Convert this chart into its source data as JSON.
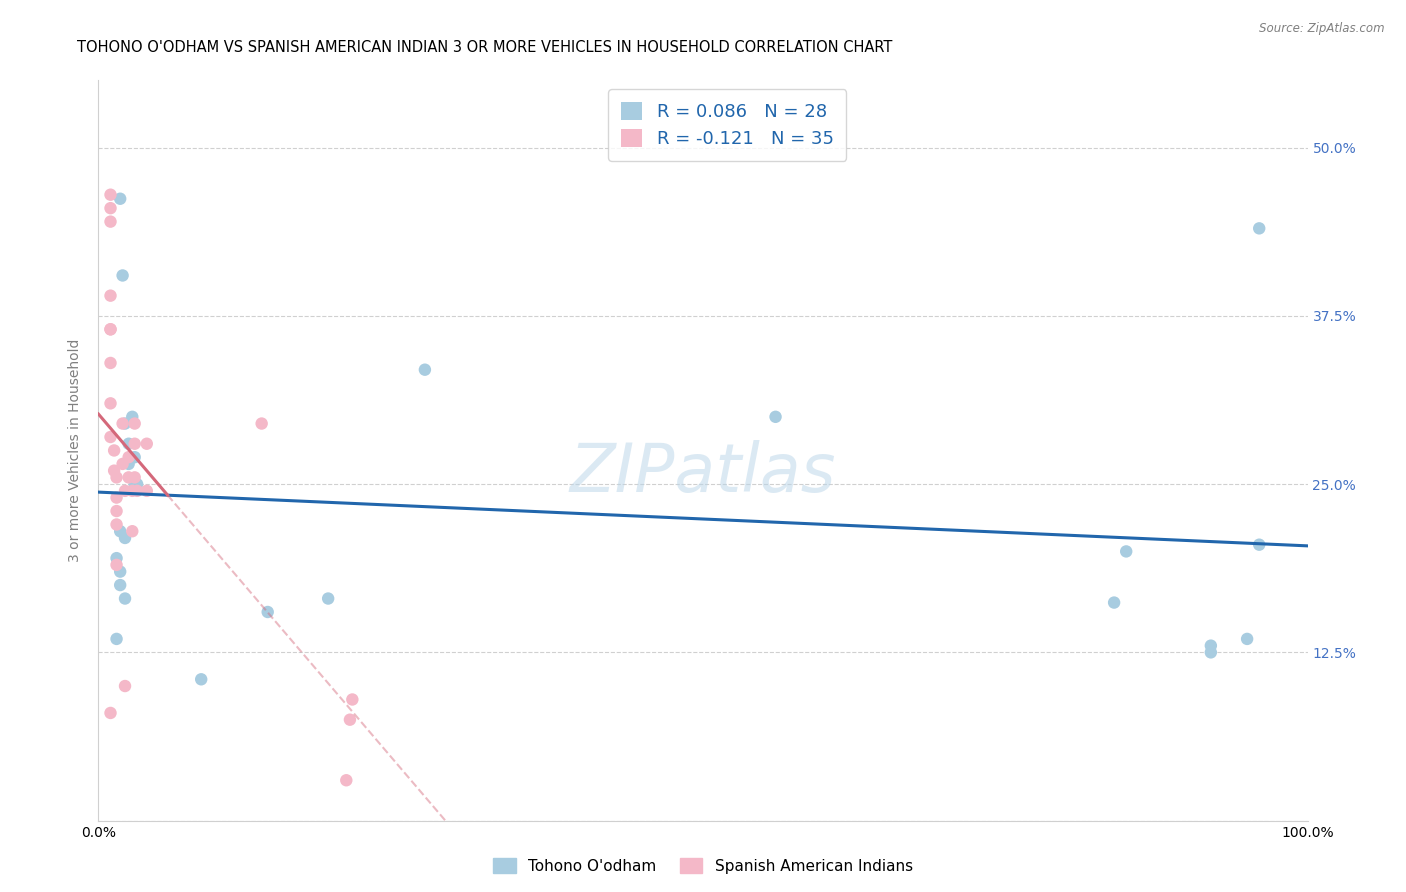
{
  "title": "TOHONO O'ODHAM VS SPANISH AMERICAN INDIAN 3 OR MORE VEHICLES IN HOUSEHOLD CORRELATION CHART",
  "source": "Source: ZipAtlas.com",
  "ylabel": "3 or more Vehicles in Household",
  "legend_label1": "Tohono O'odham",
  "legend_label2": "Spanish American Indians",
  "R1": 0.086,
  "N1": 28,
  "R2": -0.121,
  "N2": 35,
  "color1": "#a8cce0",
  "color2": "#f4b8c8",
  "line_color1": "#2166ac",
  "line_color2": "#d4687a",
  "watermark": "ZIPatlas",
  "xlim": [
    0.0,
    1.0
  ],
  "ylim": [
    0.0,
    0.55
  ],
  "xticks": [
    0.0,
    0.125,
    0.25,
    0.375,
    0.5,
    0.625,
    0.75,
    0.875,
    1.0
  ],
  "xticklabels": [
    "0.0%",
    "",
    "",
    "",
    "",
    "",
    "",
    "",
    "100.0%"
  ],
  "yticks": [
    0.0,
    0.125,
    0.25,
    0.375,
    0.5
  ],
  "yticklabels_left": [
    "",
    "",
    "",
    "",
    ""
  ],
  "yticklabels_right": [
    "",
    "12.5%",
    "25.0%",
    "37.5%",
    "50.0%"
  ],
  "blue_x": [
    0.018,
    0.02,
    0.022,
    0.025,
    0.025,
    0.028,
    0.03,
    0.03,
    0.032,
    0.018,
    0.022,
    0.015,
    0.018,
    0.018,
    0.022,
    0.015,
    0.085,
    0.14,
    0.19,
    0.27,
    0.56,
    0.84,
    0.85,
    0.92,
    0.92,
    0.95,
    0.96,
    0.96
  ],
  "blue_y": [
    0.462,
    0.405,
    0.295,
    0.28,
    0.265,
    0.3,
    0.27,
    0.25,
    0.25,
    0.215,
    0.21,
    0.195,
    0.185,
    0.175,
    0.165,
    0.135,
    0.105,
    0.155,
    0.165,
    0.335,
    0.3,
    0.162,
    0.2,
    0.13,
    0.125,
    0.135,
    0.205,
    0.44
  ],
  "pink_x": [
    0.01,
    0.01,
    0.01,
    0.01,
    0.01,
    0.01,
    0.01,
    0.01,
    0.01,
    0.01,
    0.013,
    0.013,
    0.015,
    0.015,
    0.015,
    0.015,
    0.015,
    0.02,
    0.02,
    0.022,
    0.022,
    0.025,
    0.025,
    0.028,
    0.028,
    0.03,
    0.03,
    0.03,
    0.032,
    0.04,
    0.04,
    0.135,
    0.205,
    0.208,
    0.21
  ],
  "pink_y": [
    0.465,
    0.455,
    0.445,
    0.39,
    0.365,
    0.34,
    0.365,
    0.31,
    0.285,
    0.08,
    0.275,
    0.26,
    0.255,
    0.24,
    0.23,
    0.22,
    0.19,
    0.295,
    0.265,
    0.245,
    0.1,
    0.27,
    0.255,
    0.245,
    0.215,
    0.295,
    0.28,
    0.255,
    0.245,
    0.28,
    0.245,
    0.295,
    0.03,
    0.075,
    0.09
  ],
  "marker_size": 80,
  "background_color": "#ffffff",
  "grid_color": "#d0d0d0",
  "title_fontsize": 10.5,
  "axis_label_fontsize": 10,
  "tick_label_color_right": "#4472c4",
  "tick_label_fontsize": 10,
  "legend_fontsize": 12
}
